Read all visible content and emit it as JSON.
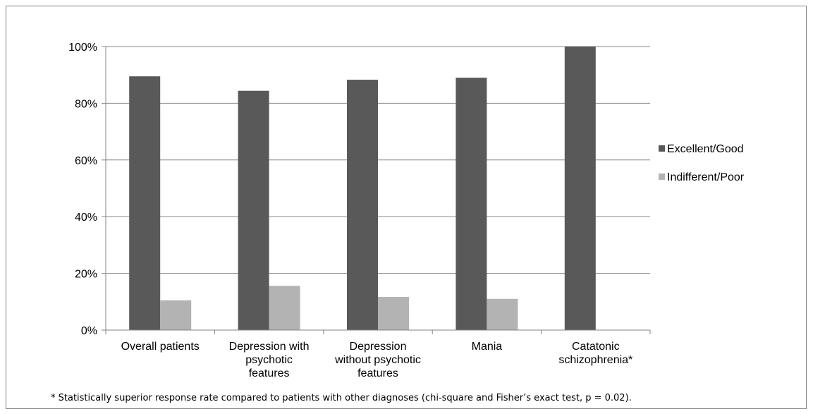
{
  "chart_data": {
    "type": "bar",
    "categories": [
      [
        "Overall patients"
      ],
      [
        "Depression with",
        "psychotic",
        "features"
      ],
      [
        "Depression",
        "without psychotic",
        "features"
      ],
      [
        "Mania"
      ],
      [
        "Catatonic",
        "schizophrenia*"
      ]
    ],
    "series": [
      {
        "name": "Excellent/Good",
        "values": [
          89.5,
          84.4,
          88.3,
          89.0,
          100
        ],
        "color": "#595959"
      },
      {
        "name": "Indifferent/Poor",
        "values": [
          10.5,
          15.6,
          11.7,
          11.0,
          0
        ],
        "color": "#b3b3b3"
      }
    ],
    "ylim": [
      0,
      100
    ],
    "yticks": [
      "0%",
      "20%",
      "40%",
      "60%",
      "80%",
      "100%"
    ],
    "grid": true,
    "legend_position": "right",
    "axis_color": "#868686",
    "grid_color": "#868686"
  },
  "footnote": "* Statistically superior response rate compared to patients with other diagnoses (chi-square and Fisher’s exact test, p = 0.02)."
}
